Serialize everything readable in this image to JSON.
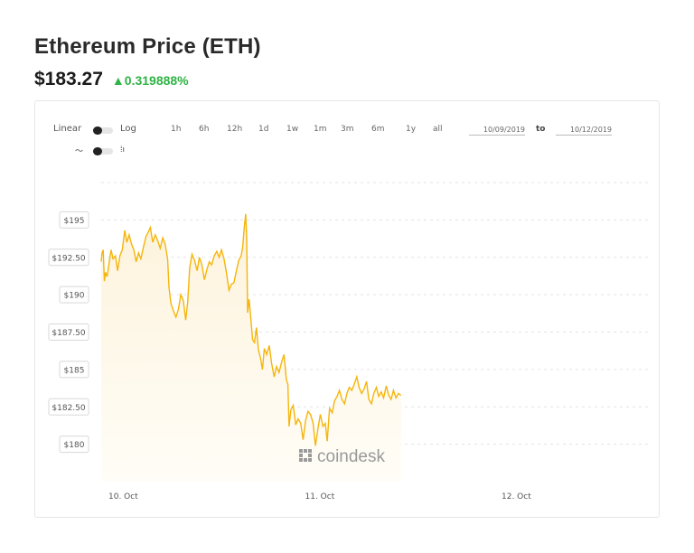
{
  "header": {
    "title": "Ethereum Price (ETH)",
    "price": "$183.27",
    "change": "0.319888%",
    "change_color": "#2fb344"
  },
  "controls": {
    "scale_linear": "Linear",
    "scale_log": "Log",
    "ranges": [
      "1h",
      "6h",
      "12h",
      "1d",
      "1w",
      "1m",
      "3m",
      "6m",
      "1y",
      "all"
    ],
    "date_from": "10/09/2019",
    "to_label": "to",
    "date_to": "10/12/2019",
    "line_icon": "line-chart-icon",
    "candle_icon": "candlestick-icon"
  },
  "watermark": "coindesk",
  "colors": {
    "line": "#f5b50b",
    "fill_top": "#fdf3dc",
    "fill_bottom": "#fffdf7",
    "grid": "#e3e3e3",
    "label_border": "#d8d8d8"
  },
  "chart_data": {
    "type": "area",
    "x_ticks": [
      "10. Oct",
      "11. Oct",
      "12. Oct"
    ],
    "y_ticks": [
      "$195",
      "$192.50",
      "$190",
      "$187.50",
      "$185",
      "$182.50",
      "$180"
    ],
    "ylim": [
      177.5,
      197.5
    ],
    "x_range_days": [
      9.75,
      12.55
    ],
    "grid": true,
    "series": [
      {
        "points": [
          [
            9.75,
            192.2
          ],
          [
            9.754,
            192.8
          ],
          [
            9.76,
            193.0
          ],
          [
            9.766,
            190.9
          ],
          [
            9.772,
            191.5
          ],
          [
            9.78,
            191.2
          ],
          [
            9.79,
            192.1
          ],
          [
            9.8,
            193.0
          ],
          [
            9.81,
            192.4
          ],
          [
            9.822,
            192.6
          ],
          [
            9.833,
            191.6
          ],
          [
            9.845,
            192.6
          ],
          [
            9.857,
            193.0
          ],
          [
            9.87,
            194.3
          ],
          [
            9.88,
            193.5
          ],
          [
            9.892,
            194.0
          ],
          [
            9.904,
            193.4
          ],
          [
            9.916,
            193.0
          ],
          [
            9.928,
            192.2
          ],
          [
            9.94,
            192.8
          ],
          [
            9.952,
            192.4
          ],
          [
            9.965,
            193.2
          ],
          [
            9.978,
            193.9
          ],
          [
            9.99,
            194.2
          ],
          [
            10.0,
            194.5
          ],
          [
            10.012,
            193.5
          ],
          [
            10.025,
            194.0
          ],
          [
            10.038,
            193.6
          ],
          [
            10.05,
            193.1
          ],
          [
            10.063,
            193.8
          ],
          [
            10.075,
            193.4
          ],
          [
            10.088,
            192.4
          ],
          [
            10.095,
            190.5
          ],
          [
            10.105,
            189.4
          ],
          [
            10.118,
            188.9
          ],
          [
            10.13,
            188.5
          ],
          [
            10.142,
            189.0
          ],
          [
            10.155,
            190.0
          ],
          [
            10.168,
            189.6
          ],
          [
            10.18,
            188.3
          ],
          [
            10.19,
            189.5
          ],
          [
            10.2,
            191.8
          ],
          [
            10.212,
            192.7
          ],
          [
            10.225,
            192.3
          ],
          [
            10.238,
            191.6
          ],
          [
            10.25,
            192.5
          ],
          [
            10.262,
            192.0
          ],
          [
            10.275,
            191.0
          ],
          [
            10.288,
            191.7
          ],
          [
            10.3,
            192.2
          ],
          [
            10.312,
            192.0
          ],
          [
            10.325,
            192.6
          ],
          [
            10.338,
            192.9
          ],
          [
            10.35,
            192.5
          ],
          [
            10.362,
            193.0
          ],
          [
            10.375,
            192.4
          ],
          [
            10.388,
            191.4
          ],
          [
            10.4,
            190.3
          ],
          [
            10.412,
            190.7
          ],
          [
            10.425,
            190.8
          ],
          [
            10.438,
            191.6
          ],
          [
            10.45,
            192.3
          ],
          [
            10.462,
            192.6
          ],
          [
            10.47,
            193.2
          ],
          [
            10.478,
            194.5
          ],
          [
            10.485,
            195.4
          ],
          [
            10.49,
            193.8
          ],
          [
            10.495,
            188.8
          ],
          [
            10.502,
            189.7
          ],
          [
            10.51,
            188.6
          ],
          [
            10.52,
            187.0
          ],
          [
            10.53,
            186.8
          ],
          [
            10.54,
            187.8
          ],
          [
            10.55,
            186.3
          ],
          [
            10.56,
            185.8
          ],
          [
            10.57,
            185.0
          ],
          [
            10.58,
            186.4
          ],
          [
            10.592,
            186.0
          ],
          [
            10.605,
            186.6
          ],
          [
            10.617,
            185.4
          ],
          [
            10.63,
            184.5
          ],
          [
            10.642,
            185.2
          ],
          [
            10.655,
            184.8
          ],
          [
            10.668,
            185.5
          ],
          [
            10.68,
            186.0
          ],
          [
            10.692,
            184.3
          ],
          [
            10.7,
            184.0
          ],
          [
            10.706,
            181.2
          ],
          [
            10.715,
            182.3
          ],
          [
            10.727,
            182.6
          ],
          [
            10.74,
            181.3
          ],
          [
            10.752,
            181.7
          ],
          [
            10.765,
            181.4
          ],
          [
            10.777,
            180.3
          ],
          [
            10.79,
            181.6
          ],
          [
            10.802,
            182.2
          ],
          [
            10.815,
            182.0
          ],
          [
            10.828,
            181.4
          ],
          [
            10.84,
            179.9
          ],
          [
            10.852,
            181.0
          ],
          [
            10.865,
            182.0
          ],
          [
            10.878,
            181.2
          ],
          [
            10.89,
            181.4
          ],
          [
            10.9,
            180.2
          ],
          [
            10.912,
            182.4
          ],
          [
            10.925,
            182.1
          ],
          [
            10.937,
            182.9
          ],
          [
            10.95,
            183.2
          ],
          [
            10.962,
            183.6
          ],
          [
            10.975,
            183.0
          ],
          [
            10.988,
            182.7
          ],
          [
            11.0,
            183.4
          ],
          [
            11.012,
            183.8
          ],
          [
            11.025,
            183.6
          ],
          [
            11.037,
            184.0
          ],
          [
            11.05,
            184.5
          ],
          [
            11.062,
            183.8
          ],
          [
            11.075,
            183.4
          ],
          [
            11.088,
            183.7
          ],
          [
            11.1,
            184.2
          ],
          [
            11.112,
            183.0
          ],
          [
            11.125,
            182.7
          ],
          [
            11.137,
            183.4
          ],
          [
            11.15,
            183.8
          ],
          [
            11.162,
            183.2
          ],
          [
            11.175,
            183.5
          ],
          [
            11.187,
            183.1
          ],
          [
            11.2,
            183.9
          ],
          [
            11.212,
            183.3
          ],
          [
            11.225,
            183.0
          ],
          [
            11.237,
            183.6
          ],
          [
            11.25,
            183.1
          ],
          [
            11.262,
            183.4
          ],
          [
            11.275,
            183.27
          ]
        ]
      }
    ]
  }
}
